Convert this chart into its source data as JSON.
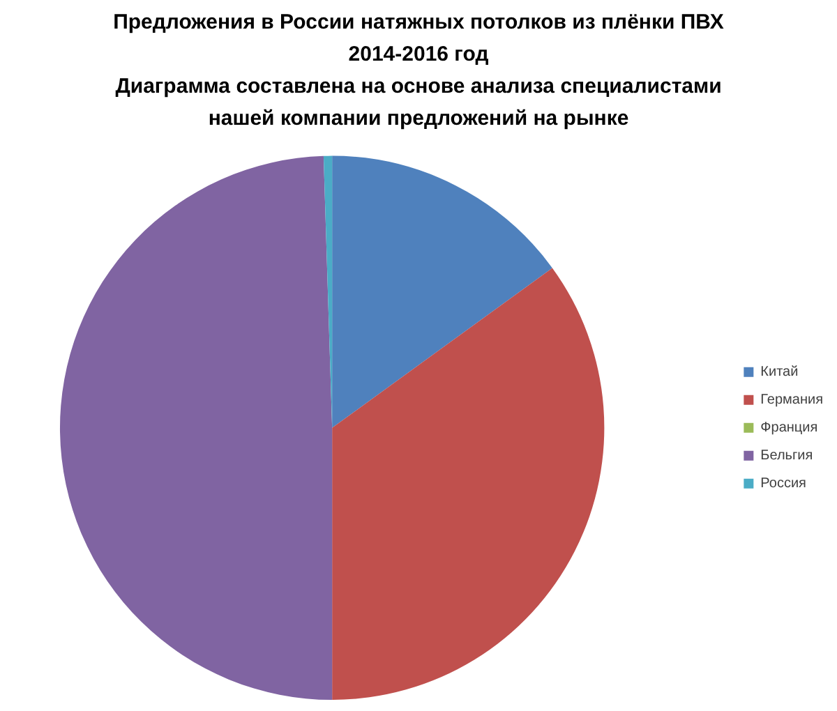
{
  "chart_data": {
    "type": "pie",
    "title": "Предложения в России натяжных потолков из плёнки ПВХ\n2014-2016 год\nДиаграмма составлена на основе анализа специалистами\nнашей компании предложений на рынке",
    "categories": [
      "Китай",
      "Германия",
      "Франция",
      "Бельгия",
      "Россия"
    ],
    "values": [
      15,
      35,
      0,
      49.5,
      0.5
    ],
    "colors": [
      "#4f81bd",
      "#c0504d",
      "#9bbb59",
      "#8064a2",
      "#4bacc6"
    ],
    "legend": "right"
  }
}
